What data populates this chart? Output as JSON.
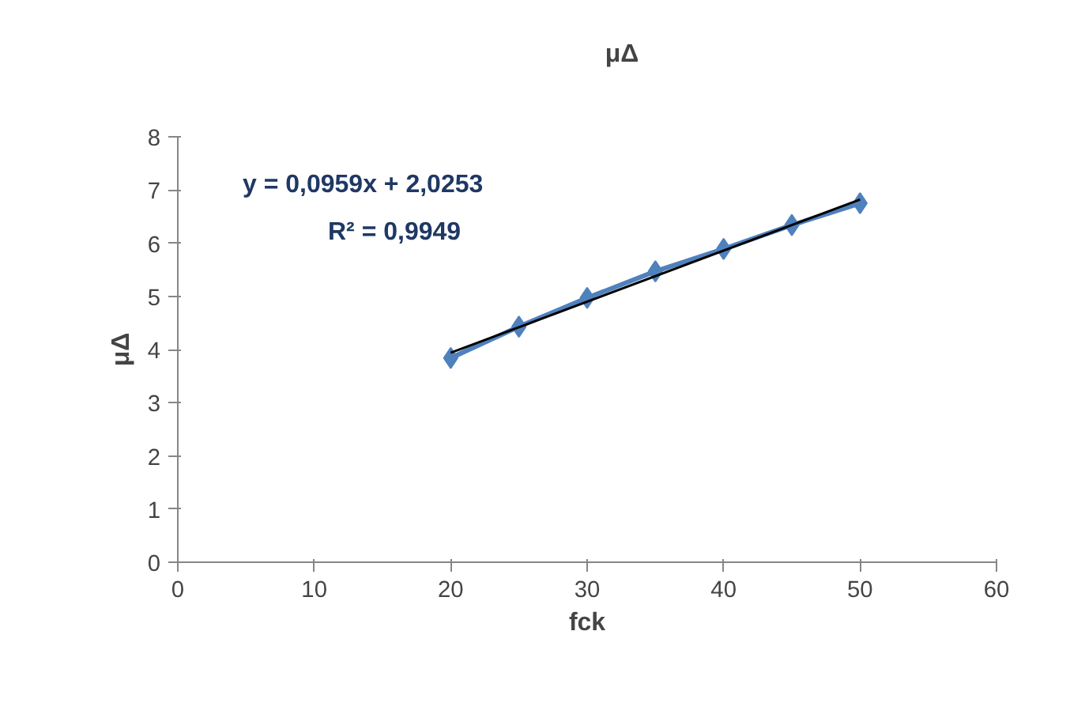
{
  "chart_data": {
    "type": "line",
    "xlabel": "fck",
    "ylabel": "μΔ",
    "x": [
      20,
      25,
      30,
      35,
      40,
      45,
      50
    ],
    "series": [
      {
        "name": "μΔ",
        "color": "#4f81bd",
        "values": [
          3.84,
          4.43,
          4.97,
          5.47,
          5.89,
          6.34,
          6.75
        ],
        "marker": "diamond"
      },
      {
        "type": "line",
        "color": "#000000",
        "x": [
          20,
          50
        ],
        "values": [
          3.94,
          6.82
        ],
        "marker": "none"
      }
    ],
    "xlim": [
      0,
      60
    ],
    "xticks": [
      0,
      10,
      20,
      30,
      40,
      50,
      60
    ],
    "ylim": [
      0,
      8
    ],
    "yticks": [
      0,
      1,
      2,
      3,
      4,
      5,
      6,
      7,
      8
    ],
    "annotations": [
      "y = 0,0959x + 2,0253",
      "R² = 0,9949"
    ],
    "grid": false,
    "legend": "top"
  }
}
